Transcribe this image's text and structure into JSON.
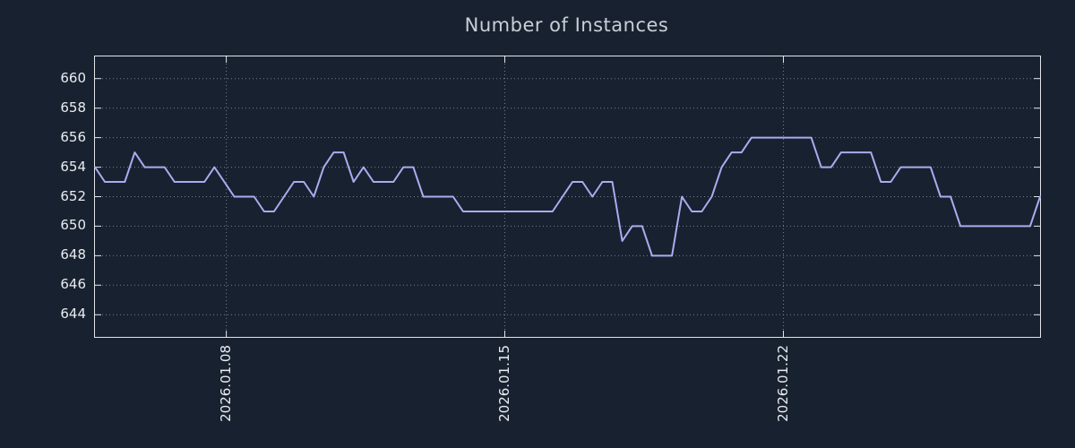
{
  "page": {
    "background": "#18212f"
  },
  "chart_data": {
    "type": "line",
    "title": "Number of Instances",
    "xlabel": "",
    "ylabel": "",
    "legend_position": "none",
    "grid": true,
    "ylim": [
      642.5,
      661.5
    ],
    "y_ticks": [
      644,
      646,
      648,
      650,
      652,
      654,
      656,
      658,
      660
    ],
    "x_range_days": [
      0,
      23.75
    ],
    "sample_interval_days": 0.25,
    "x_ticks": [
      {
        "day": 3.3,
        "label": "2026.01.08"
      },
      {
        "day": 10.3,
        "label": "2026.01.15"
      },
      {
        "day": 17.3,
        "label": "2026.01.22"
      }
    ],
    "series": [
      {
        "name": "instances",
        "color": "#a8adf0",
        "values": [
          654,
          653,
          653,
          653,
          655,
          654,
          654,
          654,
          653,
          653,
          653,
          653,
          654,
          653,
          652,
          652,
          652,
          651,
          651,
          652,
          653,
          653,
          652,
          654,
          655,
          655,
          653,
          654,
          653,
          653,
          653,
          654,
          654,
          652,
          652,
          652,
          652,
          651,
          651,
          651,
          651,
          651,
          651,
          651,
          651,
          651,
          651,
          652,
          653,
          653,
          652,
          653,
          653,
          649,
          650,
          650,
          648,
          648,
          648,
          652,
          651,
          651,
          652,
          654,
          655,
          655,
          656,
          656,
          656,
          656,
          656,
          656,
          656,
          654,
          654,
          655,
          655,
          655,
          655,
          653,
          653,
          654,
          654,
          654,
          654,
          652,
          652,
          650,
          650,
          650,
          650,
          650,
          650,
          650,
          650,
          652
        ]
      }
    ],
    "colors": {
      "background": "#18212f",
      "axis": "#e2e6ea",
      "grid": "#7f8a99",
      "tick_text": "#e9edf2",
      "title_text": "#c8cfd8",
      "line": "#a8adf0"
    }
  }
}
